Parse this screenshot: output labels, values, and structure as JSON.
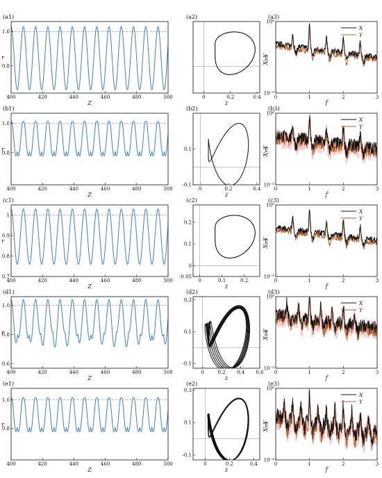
{
  "panel_labels": [
    "(a1)",
    "(a2)",
    "(a3)",
    "(b1)",
    "(b2)",
    "(b3)",
    "(c1)",
    "(c2)",
    "(c3)",
    "(d1)",
    "(d2)",
    "(d3)",
    "(e1)",
    "(e2)",
    "(e3)"
  ],
  "colors": {
    "series_r": "#3b7fc4",
    "ref_line": "#888888",
    "X": "#111111",
    "Y": "#b5602a",
    "spread": "#f2a6a6"
  },
  "chart_data": [
    {
      "panel": "(a1)",
      "type": "line",
      "xlabel": "Z",
      "ylabel": "r",
      "xlim": [
        400,
        500
      ],
      "ylim": [
        0.64,
        1.06
      ],
      "xticks": [
        "400",
        "420",
        "440",
        "460",
        "480",
        "500"
      ],
      "yticks": [
        {
          "v": 0.8,
          "t": "0.8"
        },
        {
          "v": 1.0,
          "t": "1.0"
        }
      ],
      "reference_y": 1.0,
      "period": 7.8,
      "min": 0.66,
      "max": 1.03,
      "series": [
        {
          "name": "r"
        }
      ]
    },
    {
      "panel": "(a2)",
      "type": "line",
      "xlabel": "ż",
      "ylabel": "ŷ",
      "xlim": [
        -0.08,
        0.42
      ],
      "ylim": [
        -0.18,
        0.3
      ],
      "xticks": [
        {
          "v": 0,
          "t": "0"
        },
        {
          "v": 0.2,
          "t": "0.2"
        },
        {
          "v": 0.4,
          "t": "0.4"
        }
      ],
      "yticks": [],
      "shape": "single-loop"
    },
    {
      "panel": "(a3)",
      "type": "line",
      "xlabel": "f̂",
      "ylabel": "X, Y",
      "scale_y": "log",
      "xlim": [
        0,
        3
      ],
      "ylim_exp": [
        -5,
        0
      ],
      "xticks": [
        "0",
        "1",
        "2",
        "3"
      ],
      "yticks": [
        "10⁰",
        "10⁻⁵"
      ],
      "series": [
        {
          "name": "X"
        },
        {
          "name": "Y"
        }
      ],
      "legend": "top-right",
      "peaks": [
        0.5,
        1.0,
        1.5,
        2.0,
        2.5
      ]
    },
    {
      "panel": "(b1)",
      "type": "line",
      "xlabel": "Z",
      "ylabel": "r",
      "xlim": [
        400,
        500
      ],
      "ylim": [
        0.58,
        1.07
      ],
      "xticks": [
        "400",
        "420",
        "440",
        "460",
        "480",
        "500"
      ],
      "yticks": [
        {
          "v": 0.8,
          "t": "0.8"
        },
        {
          "v": 1.0,
          "t": "1.0"
        }
      ],
      "reference_y": 1.0,
      "period": 7.8,
      "min": 0.62,
      "max": 1.04,
      "series": [
        {
          "name": "r"
        }
      ]
    },
    {
      "panel": "(b2)",
      "type": "line",
      "xlabel": "ż",
      "ylabel": "ŷ",
      "xlim": [
        -0.05,
        0.42
      ],
      "ylim": [
        -0.1,
        0.3
      ],
      "xticks": [
        {
          "v": 0,
          "t": "0"
        },
        {
          "v": 0.2,
          "t": "0.2"
        },
        {
          "v": 0.4,
          "t": "0.4"
        }
      ],
      "yticks": [
        {
          "v": -0.1,
          "t": "-0.1"
        },
        {
          "v": 0.1,
          "t": "0.1"
        }
      ],
      "shape": "figure-eight"
    },
    {
      "panel": "(b3)",
      "type": "line",
      "xlabel": "f̂",
      "ylabel": "X, Y",
      "scale_y": "log",
      "xlim": [
        0,
        3
      ],
      "ylim_exp": [
        -5,
        0
      ],
      "xticks": [
        "0",
        "1",
        "2",
        "3"
      ],
      "yticks": [
        "10⁰",
        "10⁻⁵"
      ],
      "series": [
        {
          "name": "X"
        },
        {
          "name": "Y"
        }
      ],
      "legend": "top-right",
      "peaks": [
        0.5,
        1.0,
        1.5,
        2.0,
        2.5
      ]
    },
    {
      "panel": "(c1)",
      "type": "line",
      "xlabel": "Z",
      "ylabel": "r",
      "xlim": [
        400,
        500
      ],
      "ylim": [
        0.7,
        1.05
      ],
      "xticks": [
        "400",
        "420",
        "440",
        "460",
        "480",
        "500"
      ],
      "yticks": [
        {
          "v": 0.7,
          "t": "0.7"
        },
        {
          "v": 0.8,
          "t": "0.8"
        },
        {
          "v": 0.9,
          "t": "0.9"
        },
        {
          "v": 1.0,
          "t": "1"
        }
      ],
      "reference_y": 1.0,
      "period": 7.8,
      "min": 0.76,
      "max": 1.03,
      "series": [
        {
          "name": "r"
        }
      ]
    },
    {
      "panel": "(c2)",
      "type": "line",
      "xlabel": "ż",
      "ylabel": "ŷ",
      "xlim": [
        -0.03,
        0.27
      ],
      "ylim": [
        -0.05,
        0.28
      ],
      "xticks": [
        {
          "v": 0,
          "t": "0"
        },
        {
          "v": 0.1,
          "t": "0.1"
        },
        {
          "v": 0.2,
          "t": "0.2"
        }
      ],
      "yticks": [
        {
          "v": -0.05,
          "t": "-0.05"
        },
        {
          "v": 0,
          "t": "0"
        },
        {
          "v": 0.1,
          "t": "0.1"
        },
        {
          "v": 0.2,
          "t": "0.2"
        }
      ],
      "shape": "single-loop"
    },
    {
      "panel": "(c3)",
      "type": "line",
      "xlabel": "f̂",
      "ylabel": "X, Y",
      "scale_y": "log",
      "xlim": [
        0,
        3
      ],
      "ylim_exp": [
        -5,
        0
      ],
      "xticks": [
        "0",
        "1",
        "2",
        "3"
      ],
      "yticks": [
        "10⁰",
        "10⁻⁵"
      ],
      "series": [
        {
          "name": "X"
        },
        {
          "name": "Y"
        }
      ],
      "legend": "top-right",
      "peaks": [
        0.5,
        1.0,
        1.5,
        2.0,
        2.5
      ]
    },
    {
      "panel": "(d1)",
      "type": "line",
      "xlabel": "Z",
      "ylabel": "r",
      "xlim": [
        400,
        500
      ],
      "ylim": [
        0.57,
        1.06
      ],
      "xticks": [
        "400",
        "420",
        "440",
        "460",
        "480",
        "500"
      ],
      "yticks": [
        {
          "v": 0.6,
          "t": "0.6"
        },
        {
          "v": 0.8,
          "t": "0.8"
        },
        {
          "v": 1.0,
          "t": "1.0"
        }
      ],
      "reference_y": 1.0,
      "period": 7.8,
      "min": 0.6,
      "max": 1.04,
      "series": [
        {
          "name": "r"
        }
      ]
    },
    {
      "panel": "(d2)",
      "type": "line",
      "xlabel": "ż",
      "ylabel": "ŷ",
      "xlim": [
        -0.1,
        0.6
      ],
      "ylim": [
        -0.13,
        0.32
      ],
      "xticks": [
        {
          "v": 0,
          "t": "0"
        },
        {
          "v": 0.2,
          "t": "0.2"
        },
        {
          "v": 0.4,
          "t": "0.4"
        },
        {
          "v": 0.6,
          "t": "0.6"
        }
      ],
      "yticks": [
        {
          "v": -0.1,
          "t": "-0.1"
        },
        {
          "v": 0.1,
          "t": "0.1"
        },
        {
          "v": 0.3,
          "t": "0.3"
        }
      ],
      "shape": "chaotic-multi-loop"
    },
    {
      "panel": "(d3)",
      "type": "line",
      "xlabel": "f̂",
      "ylabel": "X, Y",
      "scale_y": "log",
      "xlim": [
        0,
        3
      ],
      "ylim_exp": [
        -5,
        0
      ],
      "xticks": [
        "0",
        "1",
        "2",
        "3"
      ],
      "yticks": [
        "10⁰",
        "10⁻⁵"
      ],
      "series": [
        {
          "name": "X"
        },
        {
          "name": "Y"
        }
      ],
      "legend": "top-right",
      "peaks": [
        0.33,
        0.67,
        1.0,
        1.33,
        1.67,
        2.0,
        2.33
      ]
    },
    {
      "panel": "(e1)",
      "type": "line",
      "xlabel": "Z",
      "ylabel": "r",
      "xlim": [
        400,
        500
      ],
      "ylim": [
        0.58,
        1.08
      ],
      "xticks": [
        "400",
        "420",
        "440",
        "460",
        "480",
        "500"
      ],
      "yticks": [
        {
          "v": 0.8,
          "t": "0.8"
        },
        {
          "v": 1.0,
          "t": "1.0"
        }
      ],
      "reference_y": 1.0,
      "period": 7.8,
      "min": 0.62,
      "max": 1.04,
      "series": [
        {
          "name": "r"
        }
      ]
    },
    {
      "panel": "(e2)",
      "type": "line",
      "xlabel": "ż",
      "ylabel": "ŷ",
      "xlim": [
        -0.1,
        0.45
      ],
      "ylim": [
        -0.13,
        0.31
      ],
      "xticks": [
        {
          "v": 0,
          "t": "0"
        },
        {
          "v": 0.2,
          "t": "0.2"
        },
        {
          "v": 0.4,
          "t": "0.4"
        }
      ],
      "yticks": [
        {
          "v": -0.1,
          "t": "-0.1"
        },
        {
          "v": 0.1,
          "t": "0.1"
        },
        {
          "v": 0.3,
          "t": "0.3"
        }
      ],
      "shape": "thick-figure-eight"
    },
    {
      "panel": "(e3)",
      "type": "line",
      "xlabel": "f̂",
      "ylabel": "X, Y",
      "scale_y": "log",
      "xlim": [
        0,
        3
      ],
      "ylim_exp": [
        -4,
        0
      ],
      "xticks": [
        "0",
        "1",
        "2",
        "3"
      ],
      "yticks": [
        "10⁰",
        "10⁻⁴"
      ],
      "series": [
        {
          "name": "X"
        },
        {
          "name": "Y"
        }
      ],
      "legend": "top-right",
      "peaks": [
        0.25,
        0.5,
        0.75,
        1.0,
        1.25,
        1.5,
        1.75,
        2.0,
        2.25,
        2.5,
        2.75
      ]
    }
  ]
}
